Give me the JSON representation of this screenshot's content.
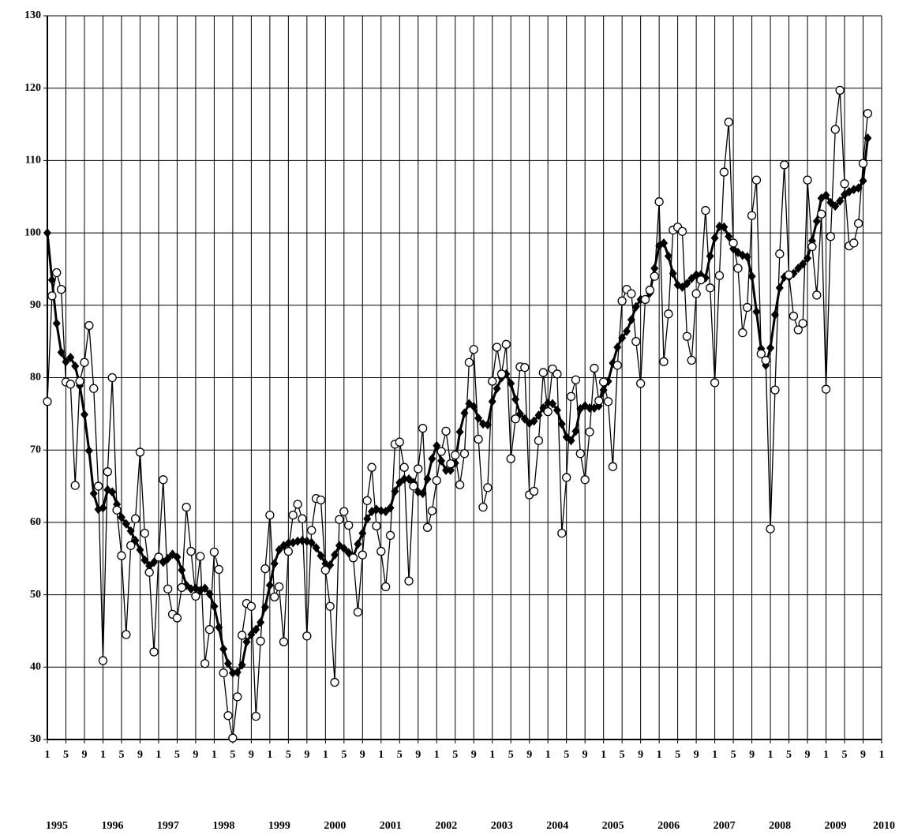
{
  "chart_data": {
    "type": "line",
    "categories": [
      "1995-01",
      "1995-02",
      "1995-03",
      "1995-04",
      "1995-05",
      "1995-06",
      "1995-07",
      "1995-08",
      "1995-09",
      "1995-10",
      "1995-11",
      "1995-12",
      "1996-01",
      "1996-02",
      "1996-03",
      "1996-04",
      "1996-05",
      "1996-06",
      "1996-07",
      "1996-08",
      "1996-09",
      "1996-10",
      "1996-11",
      "1996-12",
      "1997-01",
      "1997-02",
      "1997-03",
      "1997-04",
      "1997-05",
      "1997-06",
      "1997-07",
      "1997-08",
      "1997-09",
      "1997-10",
      "1997-11",
      "1997-12",
      "1998-01",
      "1998-02",
      "1998-03",
      "1998-04",
      "1998-05",
      "1998-06",
      "1998-07",
      "1998-08",
      "1998-09",
      "1998-10",
      "1998-11",
      "1998-12",
      "1999-01",
      "1999-02",
      "1999-03",
      "1999-04",
      "1999-05",
      "1999-06",
      "1999-07",
      "1999-08",
      "1999-09",
      "1999-10",
      "1999-11",
      "1999-12",
      "2000-01",
      "2000-02",
      "2000-03",
      "2000-04",
      "2000-05",
      "2000-06",
      "2000-07",
      "2000-08",
      "2000-09",
      "2000-10",
      "2000-11",
      "2000-12",
      "2001-01",
      "2001-02",
      "2001-03",
      "2001-04",
      "2001-05",
      "2001-06",
      "2001-07",
      "2001-08",
      "2001-09",
      "2001-10",
      "2001-11",
      "2001-12",
      "2002-01",
      "2002-02",
      "2002-03",
      "2002-04",
      "2002-05",
      "2002-06",
      "2002-07",
      "2002-08",
      "2002-09",
      "2002-10",
      "2002-11",
      "2002-12",
      "2003-01",
      "2003-02",
      "2003-03",
      "2003-04",
      "2003-05",
      "2003-06",
      "2003-07",
      "2003-08",
      "2003-09",
      "2003-10",
      "2003-11",
      "2003-12",
      "2004-01",
      "2004-02",
      "2004-03",
      "2004-04",
      "2004-05",
      "2004-06",
      "2004-07",
      "2004-08",
      "2004-09",
      "2004-10",
      "2004-11",
      "2004-12",
      "2005-01",
      "2005-02",
      "2005-03",
      "2005-04",
      "2005-05",
      "2005-06",
      "2005-07",
      "2005-08",
      "2005-09",
      "2005-10",
      "2005-11",
      "2005-12",
      "2006-01",
      "2006-02",
      "2006-03",
      "2006-04",
      "2006-05",
      "2006-06",
      "2006-07",
      "2006-08",
      "2006-09",
      "2006-10",
      "2006-11",
      "2006-12",
      "2007-01",
      "2007-02",
      "2007-03",
      "2007-04",
      "2007-05",
      "2007-06",
      "2007-07",
      "2007-08",
      "2007-09",
      "2007-10",
      "2007-11",
      "2007-12",
      "2008-01",
      "2008-02",
      "2008-03",
      "2008-04",
      "2008-05",
      "2008-06",
      "2008-07",
      "2008-08",
      "2008-09",
      "2008-10",
      "2008-11",
      "2008-12",
      "2009-01",
      "2009-02",
      "2009-03",
      "2009-04",
      "2009-05",
      "2009-06",
      "2009-07",
      "2009-08",
      "2009-09",
      "2009-10",
      "2009-11",
      "2009-12",
      "2010-01"
    ],
    "series": [
      {
        "color": "#000000",
        "marker": "circle",
        "line_width": 1.3,
        "values": [
          76.7,
          91.3,
          94.5,
          92.2,
          79.4,
          79.1,
          65.1,
          79.5,
          82.1,
          87.2,
          78.5,
          65.0,
          40.9,
          67,
          80,
          61.7,
          55.4,
          44.5,
          56.8,
          60.5,
          69.7,
          58.5,
          53.1,
          42.1,
          55.2,
          65.9,
          50.8,
          47.3,
          46.8,
          51,
          62.1,
          56,
          49.8,
          55.3,
          40.5,
          45.2,
          55.9,
          53.5,
          39.2,
          33.3,
          30.2,
          35.9,
          44.4,
          48.8,
          48.4,
          33.2,
          43.6,
          53.6,
          61,
          49.7,
          51.1,
          43.5,
          56,
          61,
          62.5,
          60.5,
          44.3,
          58.9,
          63.3,
          63.1,
          53.4,
          48.4,
          37.9,
          60.4,
          61.5,
          59.6,
          55.1,
          47.6,
          55.5,
          63,
          67.6,
          59.5,
          56,
          51.1,
          58.2,
          70.8,
          71.1,
          67.6,
          51.9,
          65,
          67.4,
          73,
          59.3,
          61.6,
          65.8,
          69.8,
          72.6,
          68.1,
          69.3,
          65.2,
          69.5,
          82.1,
          83.9,
          71.5,
          62.1,
          64.8,
          79.5,
          84.2,
          80.5,
          84.6,
          68.8,
          74.3,
          81.5,
          81.4,
          63.8,
          64.3,
          71.3,
          80.7,
          75.3,
          81.2,
          80.5,
          58.5,
          66.2,
          77.4,
          79.7,
          69.5,
          65.9,
          72.5,
          81.3,
          76.8,
          79.4,
          76.7,
          67.7,
          81.7,
          90.6,
          92.2,
          91.6,
          85,
          79.2,
          90.8,
          92.1,
          94,
          104.3,
          82.2,
          88.8,
          100.4,
          100.8,
          100.2,
          85.7,
          82.4,
          91.6,
          93.5,
          103.1,
          92.4,
          79.3,
          94.1,
          108.4,
          115.3,
          98.6,
          95.1,
          86.2,
          89.7,
          102.4,
          107.3,
          83.3,
          82.4,
          59.1,
          78.3,
          97.1,
          109.4,
          94.2,
          88.5,
          86.6,
          87.5,
          107.3,
          98.1,
          91.4,
          102.6,
          78.4,
          99.5,
          114.3,
          119.7,
          106.8,
          98.2,
          98.6,
          101.3,
          109.6,
          116.5,
          null,
          null,
          null
        ]
      },
      {
        "color": "#000000",
        "marker": "diamond",
        "line_width": 3,
        "values": [
          100,
          93.5,
          87.5,
          83.5,
          82.2,
          82.8,
          81.6,
          78.9,
          74.9,
          69.9,
          64,
          61.8,
          62,
          64.5,
          64.2,
          62.5,
          60.7,
          59.8,
          58.8,
          57.5,
          56.2,
          54.8,
          54.0,
          54.5,
          55.3,
          54.5,
          55,
          55.6,
          55.2,
          53.4,
          51.3,
          50.8,
          50.9,
          50.6,
          50.9,
          50.1,
          48.4,
          45.5,
          42.5,
          40.5,
          39.2,
          39.3,
          40.3,
          43.5,
          44.5,
          45.2,
          46.2,
          48.3,
          51.3,
          54.3,
          56.2,
          56.8,
          57.1,
          57.2,
          57.4,
          57.5,
          57.4,
          57.2,
          56.5,
          55.4,
          54.3,
          54.1,
          55.5,
          56.8,
          56.4,
          55.8,
          55.2,
          57,
          58.5,
          60.5,
          61.5,
          61.8,
          61.6,
          61.5,
          62,
          64.3,
          65.5,
          66,
          66,
          65.5,
          64.2,
          64,
          66,
          68.8,
          70.6,
          68.5,
          67.2,
          67.2,
          68.2,
          72.5,
          75.1,
          76.4,
          76,
          74.4,
          73.6,
          73.5,
          76.7,
          78.5,
          80,
          80.5,
          79.2,
          77,
          75,
          74.3,
          73.7,
          74,
          74.8,
          75.8,
          76.5,
          76.4,
          75.5,
          73.6,
          71.8,
          71.3,
          72.6,
          75.7,
          76.1,
          75.8,
          75.8,
          76.1,
          78.3,
          79.5,
          82,
          84.2,
          85.5,
          86.4,
          88,
          89.8,
          90.8,
          90.8,
          91.7,
          95.1,
          98.2,
          98.6,
          96.8,
          94.4,
          92.8,
          92.5,
          93,
          93.7,
          94.2,
          94.2,
          93.8,
          96.8,
          99.3,
          100.9,
          100.8,
          99.5,
          97.8,
          97.3,
          96.9,
          96.7,
          94,
          89.1,
          84,
          81.7,
          84.1,
          88.7,
          92.4,
          93.9,
          93.9,
          94.4,
          95.1,
          95.7,
          96.5,
          98.9,
          101.6,
          104.8,
          105.2,
          104.2,
          103.7,
          104.4,
          105.3,
          105.7,
          106,
          106.2,
          107.2,
          113.1,
          null,
          null,
          null
        ]
      }
    ],
    "ylim": [
      30,
      130
    ],
    "yticks": [
      30,
      40,
      50,
      60,
      70,
      80,
      90,
      100,
      110,
      120,
      130
    ],
    "grid": true,
    "xticks": [
      {
        "value": "1995-01",
        "label": "1"
      },
      {
        "value": "1995-05",
        "label": "5"
      },
      {
        "value": "1995-09",
        "label": "9"
      },
      {
        "value": "1996-01",
        "label": "1"
      },
      {
        "value": "1996-05",
        "label": "5"
      },
      {
        "value": "1996-09",
        "label": "9"
      },
      {
        "value": "1997-01",
        "label": "1"
      },
      {
        "value": "1997-05",
        "label": "5"
      },
      {
        "value": "1997-09",
        "label": "9"
      },
      {
        "value": "1998-01",
        "label": "1"
      },
      {
        "value": "1998-05",
        "label": "5"
      },
      {
        "value": "1998-09",
        "label": "9"
      },
      {
        "value": "1999-01",
        "label": "1"
      },
      {
        "value": "1999-05",
        "label": "5"
      },
      {
        "value": "1999-09",
        "label": "9"
      },
      {
        "value": "2000-01",
        "label": "1"
      },
      {
        "value": "2000-05",
        "label": "5"
      },
      {
        "value": "2000-09",
        "label": "9"
      },
      {
        "value": "2001-01",
        "label": "1"
      },
      {
        "value": "2001-05",
        "label": "5"
      },
      {
        "value": "2001-09",
        "label": "9"
      },
      {
        "value": "2002-01",
        "label": "1"
      },
      {
        "value": "2002-05",
        "label": "5"
      },
      {
        "value": "2002-09",
        "label": "9"
      },
      {
        "value": "2003-01",
        "label": "1"
      },
      {
        "value": "2003-05",
        "label": "5"
      },
      {
        "value": "2003-09",
        "label": "9"
      },
      {
        "value": "2004-01",
        "label": "1"
      },
      {
        "value": "2004-05",
        "label": "5"
      },
      {
        "value": "2004-09",
        "label": "9"
      },
      {
        "value": "2005-01",
        "label": "1"
      },
      {
        "value": "2005-05",
        "label": "5"
      },
      {
        "value": "2005-09",
        "label": "9"
      },
      {
        "value": "2006-01",
        "label": "1"
      },
      {
        "value": "2006-05",
        "label": "5"
      },
      {
        "value": "2006-09",
        "label": "9"
      },
      {
        "value": "2007-01",
        "label": "1"
      },
      {
        "value": "2007-05",
        "label": "5"
      },
      {
        "value": "2007-09",
        "label": "9"
      },
      {
        "value": "2008-01",
        "label": "1"
      },
      {
        "value": "2008-05",
        "label": "5"
      },
      {
        "value": "2008-09",
        "label": "9"
      },
      {
        "value": "2009-01",
        "label": "1"
      },
      {
        "value": "2009-05",
        "label": "5"
      },
      {
        "value": "2009-09",
        "label": "9"
      },
      {
        "value": "2010-01",
        "label": "1"
      }
    ],
    "year_labels": [
      {
        "value": "1995-01",
        "label": "1995"
      },
      {
        "value": "1996-01",
        "label": "1996"
      },
      {
        "value": "1997-01",
        "label": "1997"
      },
      {
        "value": "1998-01",
        "label": "1998"
      },
      {
        "value": "1999-01",
        "label": "1999"
      },
      {
        "value": "2000-01",
        "label": "2000"
      },
      {
        "value": "2001-01",
        "label": "2001"
      },
      {
        "value": "2002-01",
        "label": "2002"
      },
      {
        "value": "2003-01",
        "label": "2003"
      },
      {
        "value": "2004-01",
        "label": "2004"
      },
      {
        "value": "2005-01",
        "label": "2005"
      },
      {
        "value": "2006-01",
        "label": "2006"
      },
      {
        "value": "2007-01",
        "label": "2007"
      },
      {
        "value": "2008-01",
        "label": "2008"
      },
      {
        "value": "2009-01",
        "label": "2009"
      },
      {
        "value": "2010-01",
        "label": "2010"
      }
    ]
  }
}
